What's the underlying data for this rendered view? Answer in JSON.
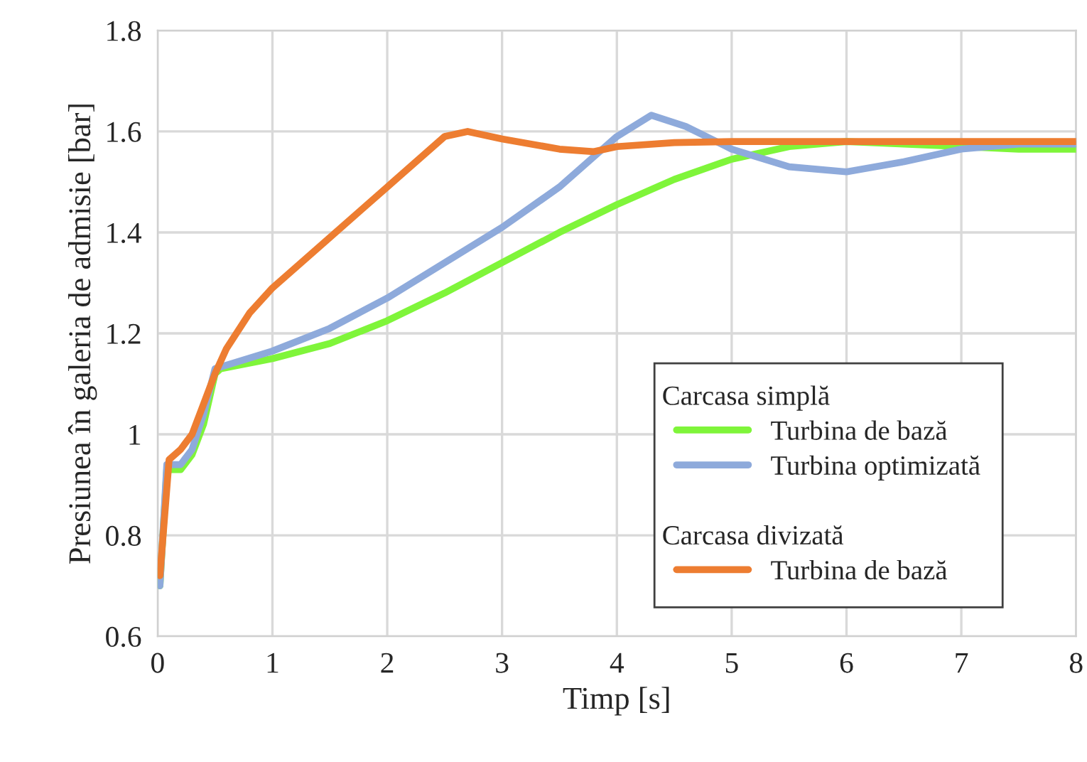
{
  "chart_data": {
    "type": "line",
    "xlabel": "Timp [s]",
    "ylabel": "Presiunea în galeria de admisie [bar]",
    "xlim": [
      0,
      8
    ],
    "xticks": [
      0,
      1,
      2,
      3,
      4,
      5,
      6,
      7,
      8
    ],
    "ylim": [
      0.6,
      1.8
    ],
    "yticks": [
      {
        "value": 0.6,
        "label": "0.6"
      },
      {
        "value": 0.8,
        "label": "0.8"
      },
      {
        "value": 1,
        "label": "1"
      },
      {
        "value": 1.2,
        "label": "1.2"
      },
      {
        "value": 1.4,
        "label": "1.4"
      },
      {
        "value": 1.6,
        "label": "1.6"
      },
      {
        "value": 1.8,
        "label": "1.8"
      }
    ],
    "grid": true,
    "legend": "bottom right",
    "line_style": "solid",
    "marker": "none",
    "annotations": [
      "Carcasa simplă",
      "Carcasa divizată"
    ],
    "series": [
      {
        "name": "Turbina de bază",
        "color": "#7ff53a",
        "x": [
          0.02,
          0.08,
          0.2,
          0.3,
          0.4,
          0.5,
          0.55,
          1.0,
          1.5,
          2.0,
          2.5,
          3.0,
          3.5,
          4.0,
          4.5,
          5.0,
          5.5,
          6.0,
          6.5,
          7.0,
          7.5,
          8.0
        ],
        "values": [
          0.7,
          0.93,
          0.93,
          0.96,
          1.02,
          1.12,
          1.13,
          1.15,
          1.18,
          1.225,
          1.28,
          1.34,
          1.4,
          1.455,
          1.505,
          1.545,
          1.57,
          1.58,
          1.575,
          1.57,
          1.565,
          1.565
        ]
      },
      {
        "name": "Turbina optimizată",
        "color": "#8eaadb",
        "x": [
          0.02,
          0.08,
          0.2,
          0.3,
          0.4,
          0.5,
          1.0,
          1.5,
          2.0,
          2.5,
          3.0,
          3.5,
          3.8,
          4.0,
          4.3,
          4.6,
          5.0,
          5.5,
          6.0,
          6.5,
          7.0,
          7.5,
          8.0
        ],
        "values": [
          0.7,
          0.94,
          0.94,
          0.97,
          1.04,
          1.13,
          1.165,
          1.21,
          1.27,
          1.34,
          1.41,
          1.49,
          1.55,
          1.59,
          1.632,
          1.61,
          1.565,
          1.53,
          1.52,
          1.54,
          1.565,
          1.575,
          1.575
        ]
      },
      {
        "name": "Turbina de bază",
        "color": "#ed7d31",
        "x": [
          0.02,
          0.1,
          0.2,
          0.3,
          0.4,
          0.5,
          0.6,
          0.8,
          1.0,
          1.5,
          2.0,
          2.5,
          2.7,
          3.0,
          3.5,
          3.8,
          4.0,
          4.5,
          5.0,
          6.0,
          7.0,
          8.0
        ],
        "values": [
          0.72,
          0.95,
          0.97,
          1.0,
          1.06,
          1.12,
          1.17,
          1.24,
          1.29,
          1.39,
          1.49,
          1.59,
          1.6,
          1.585,
          1.565,
          1.56,
          1.57,
          1.578,
          1.58,
          1.58,
          1.58,
          1.58
        ]
      }
    ]
  }
}
